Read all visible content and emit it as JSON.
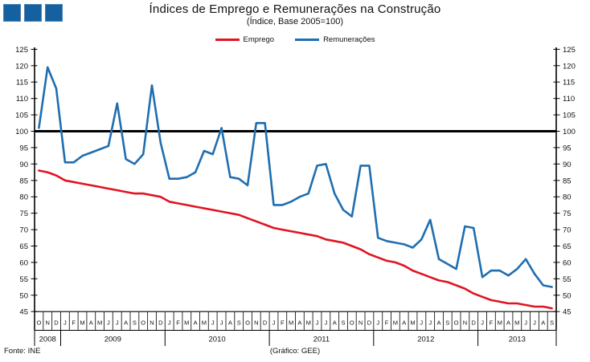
{
  "header": {
    "title": "Índices de Emprego e Remunerações na Construção",
    "subtitle": "(Índice, Base 2005=100)"
  },
  "legend": [
    {
      "label": "Emprego",
      "color": "#E01422"
    },
    {
      "label": "Remunerações",
      "color": "#1F6EB0"
    }
  ],
  "footer": {
    "source": "Fonte: INE",
    "credit": "(Gráfico: GEE)"
  },
  "decoration": {
    "squares_color": "#15609F",
    "squares_count": 3
  },
  "chart_data": {
    "type": "line",
    "title": "Índices de Emprego e Remunerações na Construção",
    "subtitle": "(Índice, Base 2005=100)",
    "y_axis": {
      "min": 45,
      "max": 125,
      "step": 5,
      "labels_on": "both-sides"
    },
    "reference_line": 100,
    "grid": "off",
    "legend_position": "top-center",
    "x_months": [
      "O",
      "N",
      "D",
      "J",
      "F",
      "M",
      "A",
      "M",
      "J",
      "J",
      "A",
      "S",
      "O",
      "N",
      "D",
      "J",
      "F",
      "M",
      "A",
      "M",
      "J",
      "J",
      "A",
      "S",
      "O",
      "N",
      "D",
      "J",
      "F",
      "M",
      "A",
      "M",
      "J",
      "J",
      "A",
      "S",
      "O",
      "N",
      "D",
      "J",
      "F",
      "M",
      "A",
      "M",
      "J",
      "J",
      "A",
      "S",
      "O",
      "N",
      "D",
      "J",
      "F",
      "M",
      "A",
      "M",
      "J",
      "J",
      "A",
      "S"
    ],
    "years": [
      {
        "label": "2008",
        "months": 3
      },
      {
        "label": "2009",
        "months": 12
      },
      {
        "label": "2010",
        "months": 12
      },
      {
        "label": "2011",
        "months": 12
      },
      {
        "label": "2012",
        "months": 12
      },
      {
        "label": "2013",
        "months": 9
      }
    ],
    "series": [
      {
        "name": "Emprego",
        "color": "#E01422",
        "values": [
          88,
          87.5,
          86.5,
          85,
          84.5,
          84,
          83.5,
          83,
          82.5,
          82,
          81.5,
          81,
          81,
          80.5,
          80,
          78.5,
          78,
          77.5,
          77,
          76.5,
          76,
          75.5,
          75,
          74.5,
          73.5,
          72.5,
          71.5,
          70.5,
          70,
          69.5,
          69,
          68.5,
          68,
          67,
          66.5,
          66,
          65,
          64,
          62.5,
          61.5,
          60.5,
          60,
          59,
          57.5,
          56.5,
          55.5,
          54.5,
          54,
          53,
          52,
          50.5,
          49.5,
          48.5,
          48,
          47.5,
          47.5,
          47,
          46.5,
          46.5,
          46
        ]
      },
      {
        "name": "Remunerações",
        "color": "#1F6EB0",
        "values": [
          101,
          119.5,
          113,
          90.5,
          90.5,
          92.5,
          93.5,
          94.5,
          95.5,
          108.5,
          91.5,
          90,
          93,
          114,
          96.5,
          85.5,
          85.5,
          86,
          87.5,
          94,
          93,
          101,
          86,
          85.5,
          83.5,
          102.5,
          102.5,
          77.5,
          77.5,
          78.5,
          80,
          81,
          89.5,
          90,
          81,
          76,
          74,
          89.5,
          89.5,
          67.5,
          66.5,
          66,
          65.5,
          64.5,
          67,
          73,
          61,
          59.5,
          58,
          71,
          70.5,
          55.5,
          57.5,
          57.5,
          56,
          58,
          61,
          56.5,
          53,
          52.5
        ]
      }
    ]
  }
}
